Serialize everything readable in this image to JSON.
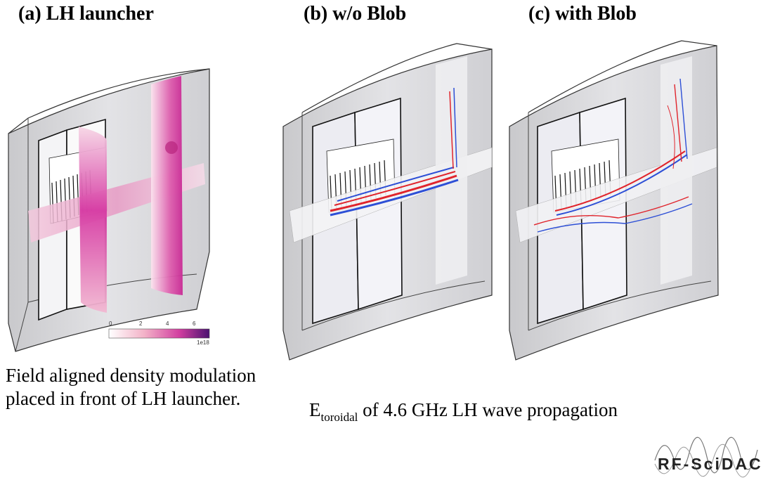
{
  "panels": {
    "a": {
      "title": "(a) LH launcher"
    },
    "b": {
      "title": "(b) w/o Blob"
    },
    "c": {
      "title": "(c) with Blob"
    }
  },
  "colorbar": {
    "ticks": [
      "0",
      "2",
      "4",
      "6"
    ],
    "exponent": "1e18",
    "colors": [
      "#ffffff",
      "#f3b3c8",
      "#d23fa0",
      "#4b1270"
    ]
  },
  "captions": {
    "left": "Field aligned density modulation placed in front of LH launcher.",
    "right_main": "E",
    "right_sub": "toroidal",
    "right_rest": " of 4.6 GHz LH wave propagation"
  },
  "logo": {
    "text": "RF-SciDAC"
  },
  "colors": {
    "box_fill": "#d9d9d9",
    "box_stroke": "#333333",
    "density": "#d63aa3",
    "wave_red": "#e0242c",
    "wave_blue": "#2d4fd6"
  }
}
